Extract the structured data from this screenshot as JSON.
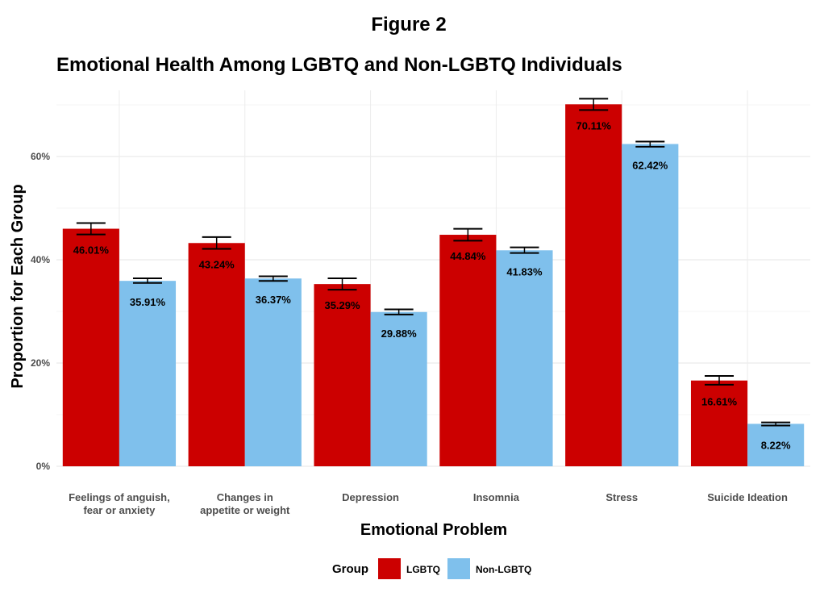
{
  "figure_label": "Figure 2",
  "chart_data": {
    "type": "bar",
    "title": "Emotional Health Among LGBTQ and Non-LGBTQ Individuals",
    "xlabel": "Emotional Problem",
    "ylabel": "Proportion for Each Group",
    "categories": [
      [
        "Feelings of anguish,",
        "fear or anxiety"
      ],
      [
        "Changes in",
        "appetite or weight"
      ],
      [
        "Depression"
      ],
      [
        "Insomnia"
      ],
      [
        "Stress"
      ],
      [
        "Suicide Ideation"
      ]
    ],
    "series": [
      {
        "name": "LGBTQ",
        "color": "#CC0000",
        "values": [
          46.01,
          43.24,
          35.29,
          44.84,
          70.11,
          16.61
        ],
        "labels": [
          "46.01%",
          "43.24%",
          "35.29%",
          "44.84%",
          "70.11%",
          "16.61%"
        ],
        "error": [
          [
            44.9,
            47.1
          ],
          [
            42.1,
            44.4
          ],
          [
            34.2,
            36.4
          ],
          [
            43.7,
            46.0
          ],
          [
            69.0,
            71.2
          ],
          [
            15.8,
            17.5
          ]
        ]
      },
      {
        "name": "Non-LGBTQ",
        "color": "#7FC0EC",
        "values": [
          35.91,
          36.37,
          29.88,
          41.83,
          62.42,
          8.22
        ],
        "labels": [
          "35.91%",
          "36.37%",
          "29.88%",
          "41.83%",
          "62.42%",
          "8.22%"
        ],
        "error": [
          [
            35.5,
            36.4
          ],
          [
            35.9,
            36.8
          ],
          [
            29.4,
            30.4
          ],
          [
            41.3,
            42.4
          ],
          [
            61.9,
            62.9
          ],
          [
            7.9,
            8.5
          ]
        ]
      }
    ],
    "ylim": [
      0,
      70
    ],
    "yticks": [
      0,
      20,
      40,
      60
    ],
    "ytick_labels": [
      "0%",
      "20%",
      "40%",
      "60%"
    ],
    "grid": true,
    "legend": {
      "title": "Group",
      "position": "bottom"
    }
  }
}
